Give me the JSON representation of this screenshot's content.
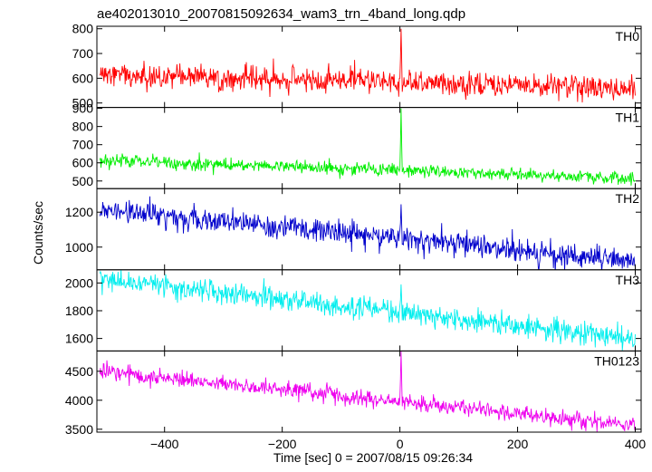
{
  "chart_data": {
    "type": "line",
    "title": "ae402013010_20070815092634_wam3_trn_4band_long.qdp",
    "xlabel": "Time [sec] 0 = 2007/08/15 09:26:34",
    "ylabel": "Counts/sec",
    "xlim": [
      -515,
      410
    ],
    "xticks": [
      -400,
      -200,
      0,
      200,
      400
    ],
    "x_sampling_sec": 1,
    "panels": [
      {
        "name": "TH0",
        "color": "#ff0000",
        "ylim": [
          482,
          810
        ],
        "yticks": [
          500,
          600,
          700,
          800
        ],
        "trend": {
          "x": [
            -510,
            400
          ],
          "y": [
            615,
            560
          ]
        },
        "noise_sd": 25,
        "spike": {
          "x": 2,
          "peak": 800
        }
      },
      {
        "name": "TH1",
        "color": "#00ee00",
        "ylim": [
          458,
          905
        ],
        "yticks": [
          500,
          600,
          700,
          800,
          900
        ],
        "trend": {
          "x": [
            -510,
            400
          ],
          "y": [
            612,
            515
          ]
        },
        "noise_sd": 18,
        "spike": {
          "x": 2,
          "peak": 900
        }
      },
      {
        "name": "TH2",
        "color": "#0000cc",
        "ylim": [
          870,
          1335
        ],
        "yticks": [
          1000,
          1200
        ],
        "trend": {
          "x": [
            -510,
            400
          ],
          "y": [
            1215,
            920
          ]
        },
        "noise_sd": 35,
        "spike": {
          "x": 2,
          "peak": 1245
        }
      },
      {
        "name": "TH3",
        "color": "#00eeee",
        "ylim": [
          1510,
          2095
        ],
        "yticks": [
          1600,
          1800,
          2000
        ],
        "trend": {
          "x": [
            -510,
            400
          ],
          "y": [
            2030,
            1595
          ]
        },
        "noise_sd": 42,
        "spike": {
          "x": 2,
          "peak": 1990
        }
      },
      {
        "name": "TH0123",
        "color": "#ee00ee",
        "ylim": [
          3450,
          4850
        ],
        "yticks": [
          3500,
          4000,
          4500
        ],
        "trend": {
          "x": [
            -510,
            400
          ],
          "y": [
            4500,
            3570
          ]
        },
        "noise_sd": 70,
        "spike": {
          "x": 2,
          "peak": 4850
        }
      }
    ]
  }
}
